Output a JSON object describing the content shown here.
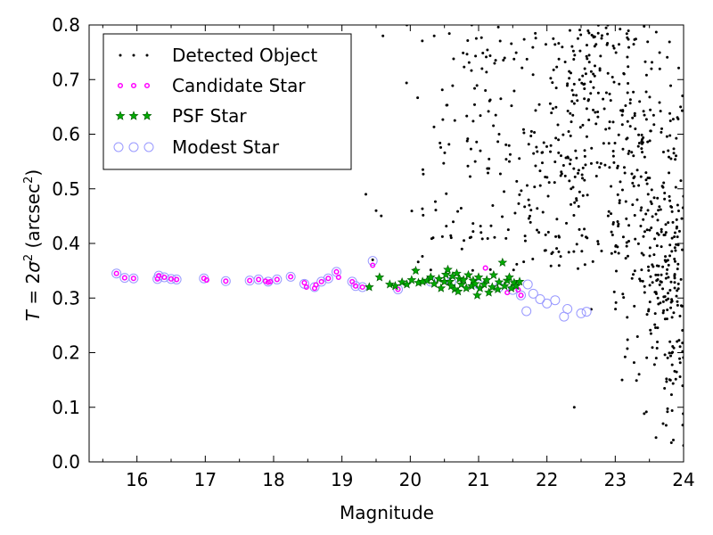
{
  "chart_data": {
    "type": "scatter",
    "xlabel": "Magnitude",
    "ylabel": "T = 2σ² (arcsec²)",
    "ylabel_parts": {
      "t": "T",
      "eq": " = 2",
      "sigma": "σ",
      "exp": "2",
      "unit_open": " (arcsec",
      "unit_exp": "2",
      "unit_close": ")"
    },
    "xlim": [
      15.3,
      24
    ],
    "ylim": [
      0,
      0.8
    ],
    "xticks": [
      "16",
      "17",
      "18",
      "19",
      "20",
      "21",
      "22",
      "23",
      "24"
    ],
    "yticks": [
      "0.0",
      "0.1",
      "0.2",
      "0.3",
      "0.4",
      "0.5",
      "0.6",
      "0.7",
      "0.8"
    ],
    "legend_position": "top-left",
    "series": [
      {
        "name": "Detected Object",
        "marker": "dot",
        "color": "#000000",
        "generated_points": {
          "count": 750,
          "x_range": [
            19.3,
            24
          ],
          "y_range": [
            0.03,
            0.8
          ],
          "density": "increasing toward faint magnitudes"
        },
        "points": [
          [
            19.45,
            0.37
          ],
          [
            19.6,
            0.78
          ],
          [
            19.95,
            0.8
          ],
          [
            20.35,
            0.78
          ],
          [
            20.9,
            0.8
          ],
          [
            21.05,
            0.72
          ],
          [
            21.1,
            0.68
          ],
          [
            21.3,
            0.6
          ],
          [
            21.45,
            0.55
          ],
          [
            20.95,
            0.55
          ],
          [
            21.75,
            0.45
          ],
          [
            19.35,
            0.49
          ],
          [
            19.5,
            0.46
          ],
          [
            22.4,
            0.1
          ],
          [
            23.1,
            0.15
          ],
          [
            23.7,
            0.07
          ],
          [
            23.85,
            0.04
          ],
          [
            24.0,
            0.03
          ],
          [
            23.6,
            0.19
          ],
          [
            23.8,
            0.22
          ]
        ]
      },
      {
        "name": "Candidate Star",
        "marker": "circle",
        "color": "#ff00ff",
        "points": [
          [
            15.7,
            0.345
          ],
          [
            15.82,
            0.337
          ],
          [
            15.95,
            0.336
          ],
          [
            16.3,
            0.335
          ],
          [
            16.32,
            0.341
          ],
          [
            16.4,
            0.338
          ],
          [
            16.5,
            0.335
          ],
          [
            16.58,
            0.334
          ],
          [
            16.98,
            0.336
          ],
          [
            17.02,
            0.333
          ],
          [
            17.3,
            0.331
          ],
          [
            17.65,
            0.332
          ],
          [
            17.78,
            0.334
          ],
          [
            17.88,
            0.331
          ],
          [
            17.92,
            0.329
          ],
          [
            17.95,
            0.33
          ],
          [
            18.05,
            0.334
          ],
          [
            18.25,
            0.339
          ],
          [
            18.45,
            0.328
          ],
          [
            18.48,
            0.32
          ],
          [
            18.6,
            0.318
          ],
          [
            18.62,
            0.324
          ],
          [
            18.7,
            0.33
          ],
          [
            18.8,
            0.336
          ],
          [
            18.92,
            0.348
          ],
          [
            18.95,
            0.338
          ],
          [
            19.15,
            0.33
          ],
          [
            19.2,
            0.322
          ],
          [
            19.3,
            0.32
          ],
          [
            19.45,
            0.36
          ],
          [
            19.82,
            0.316
          ],
          [
            21.1,
            0.355
          ],
          [
            21.42,
            0.31
          ],
          [
            21.58,
            0.315
          ],
          [
            21.62,
            0.305
          ]
        ]
      },
      {
        "name": "PSF Star",
        "marker": "star",
        "color": "#00aa00",
        "points": [
          [
            19.4,
            0.32
          ],
          [
            19.55,
            0.338
          ],
          [
            19.7,
            0.325
          ],
          [
            19.78,
            0.322
          ],
          [
            19.88,
            0.329
          ],
          [
            19.95,
            0.325
          ],
          [
            20.02,
            0.333
          ],
          [
            20.08,
            0.35
          ],
          [
            20.12,
            0.328
          ],
          [
            20.18,
            0.33
          ],
          [
            20.25,
            0.332
          ],
          [
            20.3,
            0.338
          ],
          [
            20.35,
            0.326
          ],
          [
            20.42,
            0.335
          ],
          [
            20.5,
            0.33
          ],
          [
            20.52,
            0.343
          ],
          [
            20.55,
            0.352
          ],
          [
            20.58,
            0.33
          ],
          [
            20.6,
            0.322
          ],
          [
            20.62,
            0.34
          ],
          [
            20.65,
            0.316
          ],
          [
            20.68,
            0.345
          ],
          [
            20.72,
            0.335
          ],
          [
            20.75,
            0.325
          ],
          [
            20.78,
            0.333
          ],
          [
            20.82,
            0.318
          ],
          [
            20.85,
            0.342
          ],
          [
            20.9,
            0.322
          ],
          [
            20.92,
            0.332
          ],
          [
            20.95,
            0.326
          ],
          [
            21.0,
            0.338
          ],
          [
            21.02,
            0.318
          ],
          [
            21.08,
            0.325
          ],
          [
            21.12,
            0.333
          ],
          [
            21.15,
            0.31
          ],
          [
            21.2,
            0.32
          ],
          [
            21.22,
            0.342
          ],
          [
            21.28,
            0.316
          ],
          [
            21.3,
            0.329
          ],
          [
            21.35,
            0.365
          ],
          [
            21.38,
            0.322
          ],
          [
            21.42,
            0.332
          ],
          [
            21.45,
            0.338
          ],
          [
            21.48,
            0.318
          ],
          [
            21.52,
            0.328
          ],
          [
            21.55,
            0.322
          ],
          [
            21.6,
            0.33
          ],
          [
            20.7,
            0.312
          ],
          [
            20.45,
            0.318
          ],
          [
            20.98,
            0.305
          ]
        ]
      },
      {
        "name": "Modest Star",
        "marker": "open-circle",
        "color": "#9999ff",
        "points": [
          [
            15.7,
            0.345
          ],
          [
            15.82,
            0.337
          ],
          [
            15.95,
            0.336
          ],
          [
            16.3,
            0.335
          ],
          [
            16.32,
            0.341
          ],
          [
            16.4,
            0.338
          ],
          [
            16.5,
            0.335
          ],
          [
            16.58,
            0.334
          ],
          [
            16.98,
            0.336
          ],
          [
            17.3,
            0.331
          ],
          [
            17.65,
            0.332
          ],
          [
            17.78,
            0.334
          ],
          [
            17.92,
            0.33
          ],
          [
            18.05,
            0.334
          ],
          [
            18.25,
            0.339
          ],
          [
            18.45,
            0.326
          ],
          [
            18.6,
            0.32
          ],
          [
            18.7,
            0.33
          ],
          [
            18.8,
            0.336
          ],
          [
            18.92,
            0.348
          ],
          [
            19.15,
            0.33
          ],
          [
            19.2,
            0.322
          ],
          [
            19.3,
            0.32
          ],
          [
            19.45,
            0.368
          ],
          [
            19.82,
            0.316
          ],
          [
            20.3,
            0.33
          ],
          [
            20.6,
            0.33
          ],
          [
            21.0,
            0.325
          ],
          [
            21.3,
            0.32
          ],
          [
            21.5,
            0.315
          ],
          [
            21.62,
            0.305
          ],
          [
            21.7,
            0.276
          ],
          [
            21.72,
            0.325
          ],
          [
            21.8,
            0.308
          ],
          [
            21.9,
            0.298
          ],
          [
            22.0,
            0.29
          ],
          [
            22.12,
            0.296
          ],
          [
            22.25,
            0.266
          ],
          [
            22.3,
            0.28
          ],
          [
            22.5,
            0.272
          ],
          [
            22.58,
            0.275
          ]
        ]
      }
    ]
  }
}
